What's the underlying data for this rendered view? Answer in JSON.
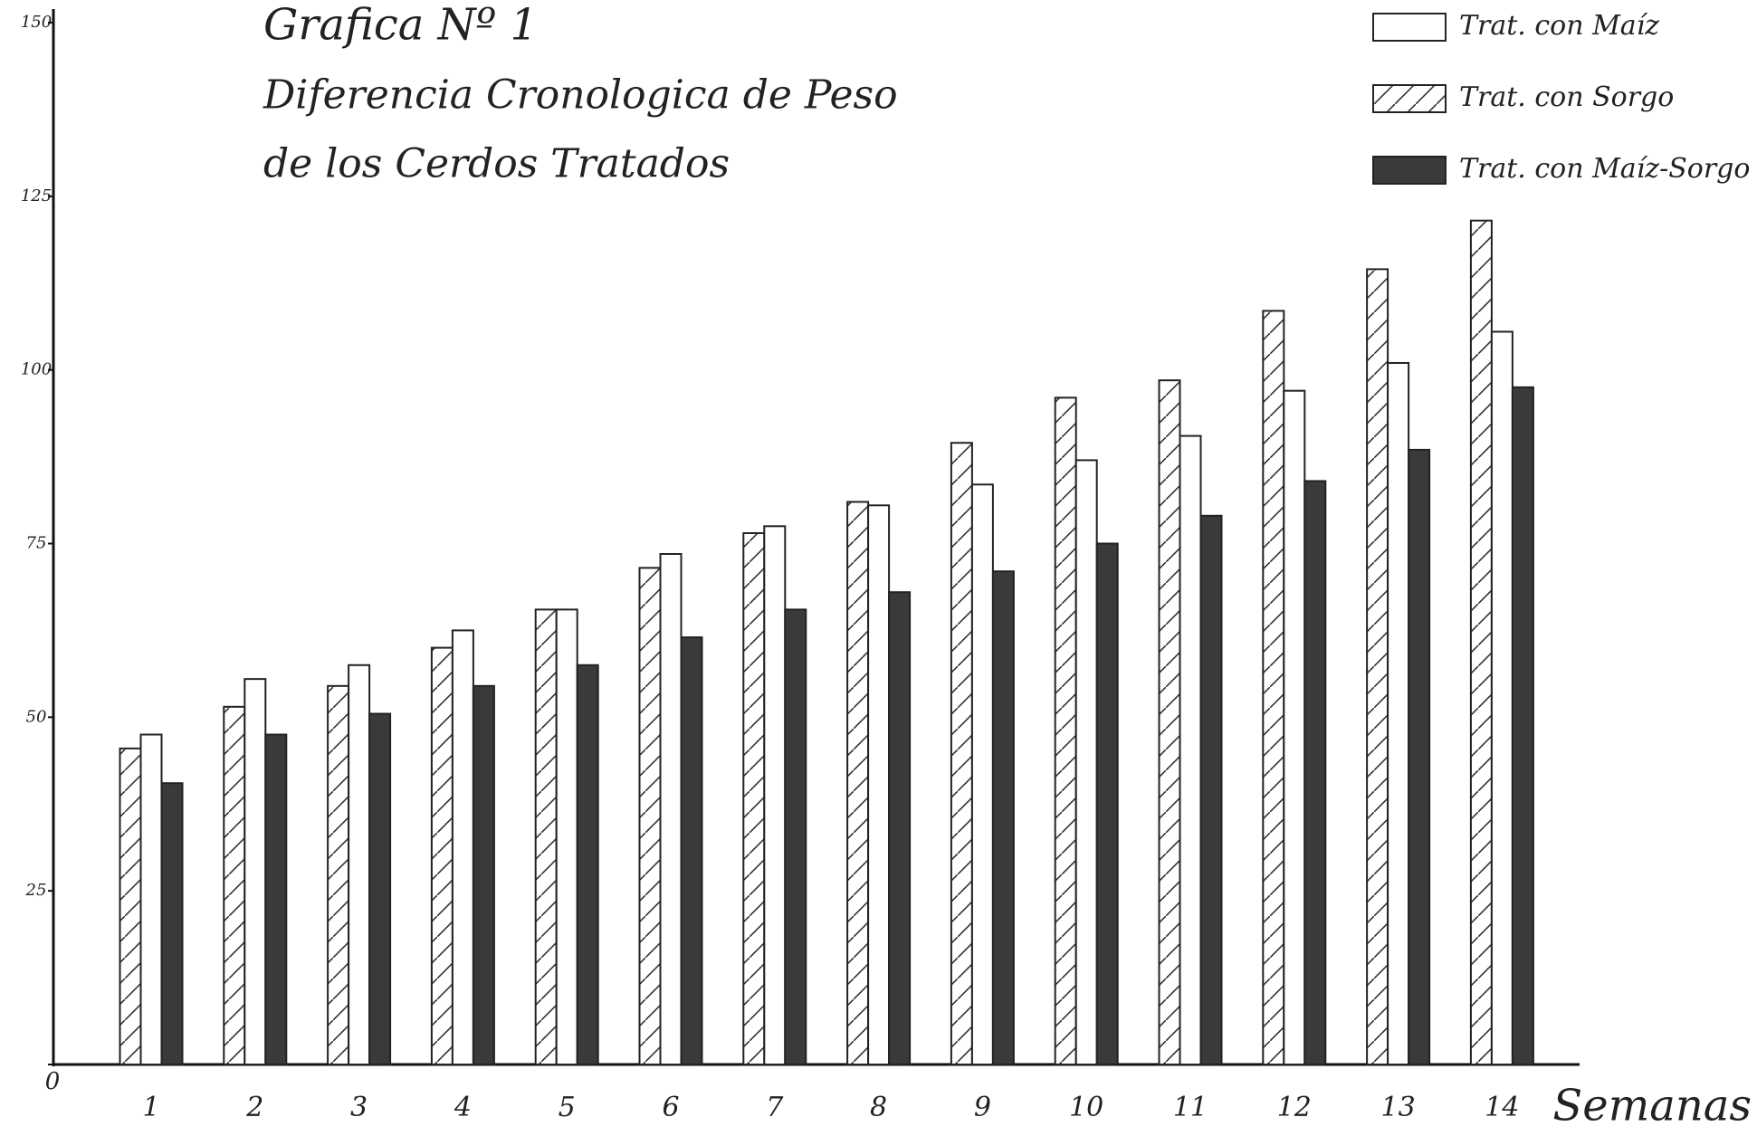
{
  "chart_data": {
    "type": "bar",
    "title": "Grafica Nº 1",
    "subtitle": [
      "Diferencia Cronologica de Peso",
      "de los Cerdos Tratados"
    ],
    "x_label": "Semanas",
    "categories": [
      "1",
      "2",
      "3",
      "4",
      "5",
      "6",
      "7",
      "8",
      "9",
      "10",
      "11",
      "12",
      "13",
      "14"
    ],
    "series": [
      {
        "name": "Trat. con Sorgo",
        "color": "#ffffff",
        "pattern": "hatch",
        "values": [
          45.5,
          51.5,
          54.5,
          60,
          65.5,
          71.5,
          76.5,
          81,
          89.5,
          96,
          98.5,
          108.5,
          114.5,
          121.5
        ]
      },
      {
        "name": "Trat. con Maíz",
        "color": "#ffffff",
        "pattern": "none",
        "values": [
          47.5,
          55.5,
          57.5,
          62.5,
          65.5,
          73.5,
          77.5,
          80.5,
          83.5,
          87,
          90.5,
          97,
          101,
          105.5
        ]
      },
      {
        "name": "Trat. con Maíz-Sorgo",
        "color": "#3a3a3a",
        "pattern": "none",
        "values": [
          40.5,
          47.5,
          50.5,
          54.5,
          57.5,
          61.5,
          65.5,
          68,
          71,
          75,
          79,
          84,
          88.5,
          97.5
        ]
      }
    ],
    "legend_order": [
      1,
      0,
      2
    ],
    "ylim": [
      0,
      150
    ],
    "yticks": [
      0,
      25,
      50,
      75,
      100,
      125,
      150
    ],
    "grid": false,
    "legend": "top-right"
  }
}
